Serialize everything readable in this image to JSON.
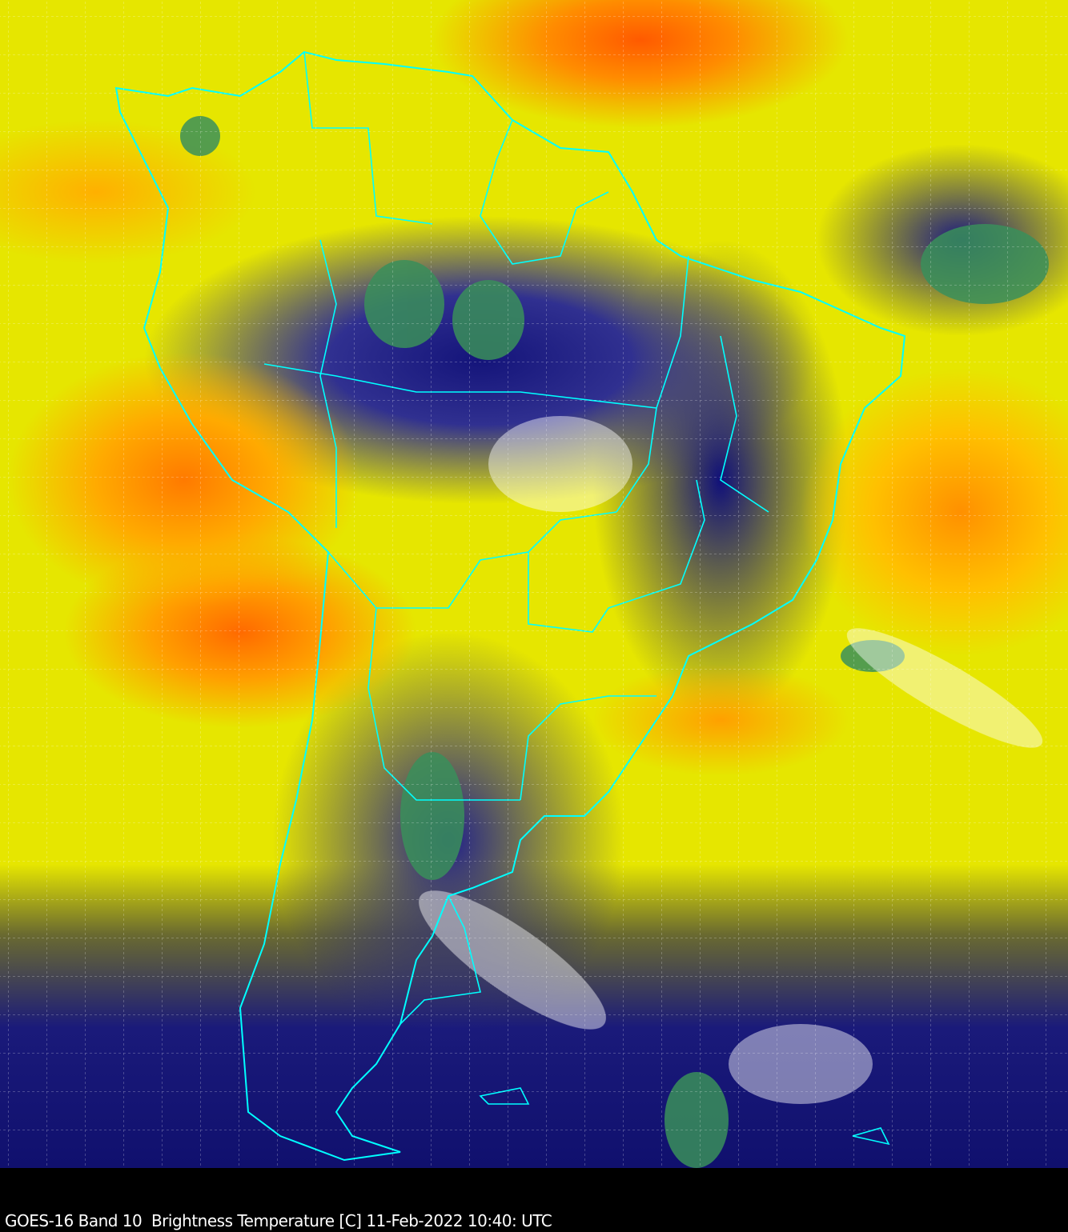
{
  "caption": "GOES-16 Band 10  Brightness Temperature [C] 11-Feb-2022 10:40: UTC",
  "colors": {
    "warm": "#ff7a00",
    "mid": "#e6e600",
    "cold": "#10106e",
    "coldest": "#2e8b57",
    "borders": "#00ffff",
    "background": "#000000"
  },
  "map": {
    "product": "brightness-temperature-imagery",
    "overlay": "country-borders",
    "graticule": "dashed-white"
  }
}
